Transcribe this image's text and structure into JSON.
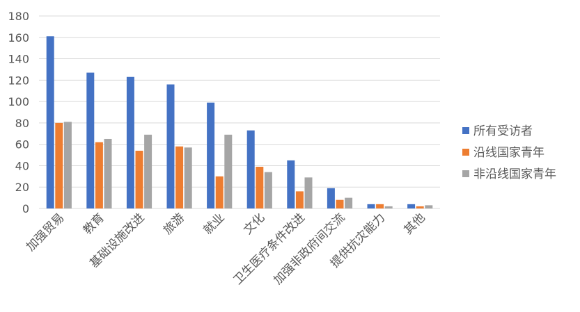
{
  "chart_data": {
    "type": "bar",
    "title": "",
    "xlabel": "",
    "ylabel": "",
    "ylim": [
      0,
      180
    ],
    "ytick_step": 20,
    "grid": true,
    "legend_position": "right",
    "categories": [
      "加强贸易",
      "教育",
      "基础设施改进",
      "旅游",
      "就业",
      "文化",
      "卫生医疗条件改进",
      "加强非政府间交流",
      "提供抗灾能力",
      "其他"
    ],
    "series": [
      {
        "name": "所有受访者",
        "color": "#4472c4",
        "values": [
          161,
          127,
          123,
          116,
          99,
          73,
          45,
          19,
          4,
          4
        ]
      },
      {
        "name": "沿线国家青年",
        "color": "#ed7d31",
        "values": [
          80,
          62,
          54,
          58,
          30,
          39,
          16,
          8,
          4,
          2
        ]
      },
      {
        "name": "非沿线国家青年",
        "color": "#a5a5a5",
        "values": [
          81,
          65,
          69,
          57,
          69,
          34,
          29,
          10,
          2,
          3
        ]
      }
    ]
  }
}
